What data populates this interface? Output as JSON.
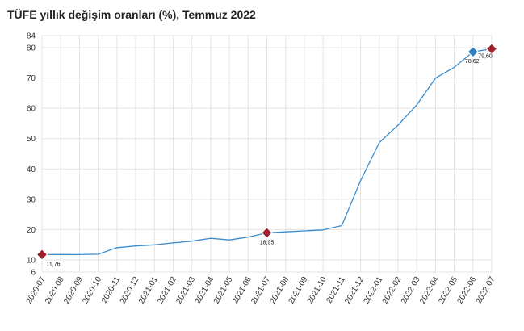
{
  "chart_data": {
    "type": "line",
    "title": "TÜFE yıllık değişim oranları (%), Temmuz 2022",
    "xlabel": "",
    "ylabel": "",
    "ylim": [
      6,
      84
    ],
    "yticks": [
      6,
      10,
      20,
      30,
      40,
      50,
      60,
      70,
      80,
      84
    ],
    "grid": true,
    "legend": "none",
    "colors": {
      "line": "#3a8ccf",
      "marker_red": "#a0212a",
      "marker_blue": "#2f7fc0",
      "grid": "#e3e3e3"
    },
    "categories": [
      "2020-07",
      "2020-08",
      "2020-09",
      "2020-10",
      "2020-11",
      "2020-12",
      "2021-01",
      "2021-02",
      "2021-03",
      "2021-04",
      "2021-05",
      "2021-06",
      "2021-07",
      "2021-08",
      "2021-09",
      "2021-10",
      "2021-11",
      "2021-12",
      "2022-01",
      "2022-02",
      "2022-03",
      "2022-04",
      "2022-05",
      "2022-06",
      "2022-07"
    ],
    "series": [
      {
        "values": [
          11.76,
          11.77,
          11.75,
          11.89,
          14.03,
          14.6,
          14.97,
          15.61,
          16.19,
          17.14,
          16.59,
          17.53,
          18.95,
          19.25,
          19.58,
          19.89,
          21.31,
          36.08,
          48.69,
          54.44,
          61.14,
          69.97,
          73.5,
          78.62,
          79.6
        ]
      }
    ],
    "markers": [
      {
        "index": 0,
        "label": "11,76",
        "color": "red"
      },
      {
        "index": 12,
        "label": "18,95",
        "color": "red"
      },
      {
        "index": 23,
        "label": "78,62",
        "color": "blue"
      },
      {
        "index": 24,
        "label": "79,60",
        "color": "red"
      }
    ]
  }
}
